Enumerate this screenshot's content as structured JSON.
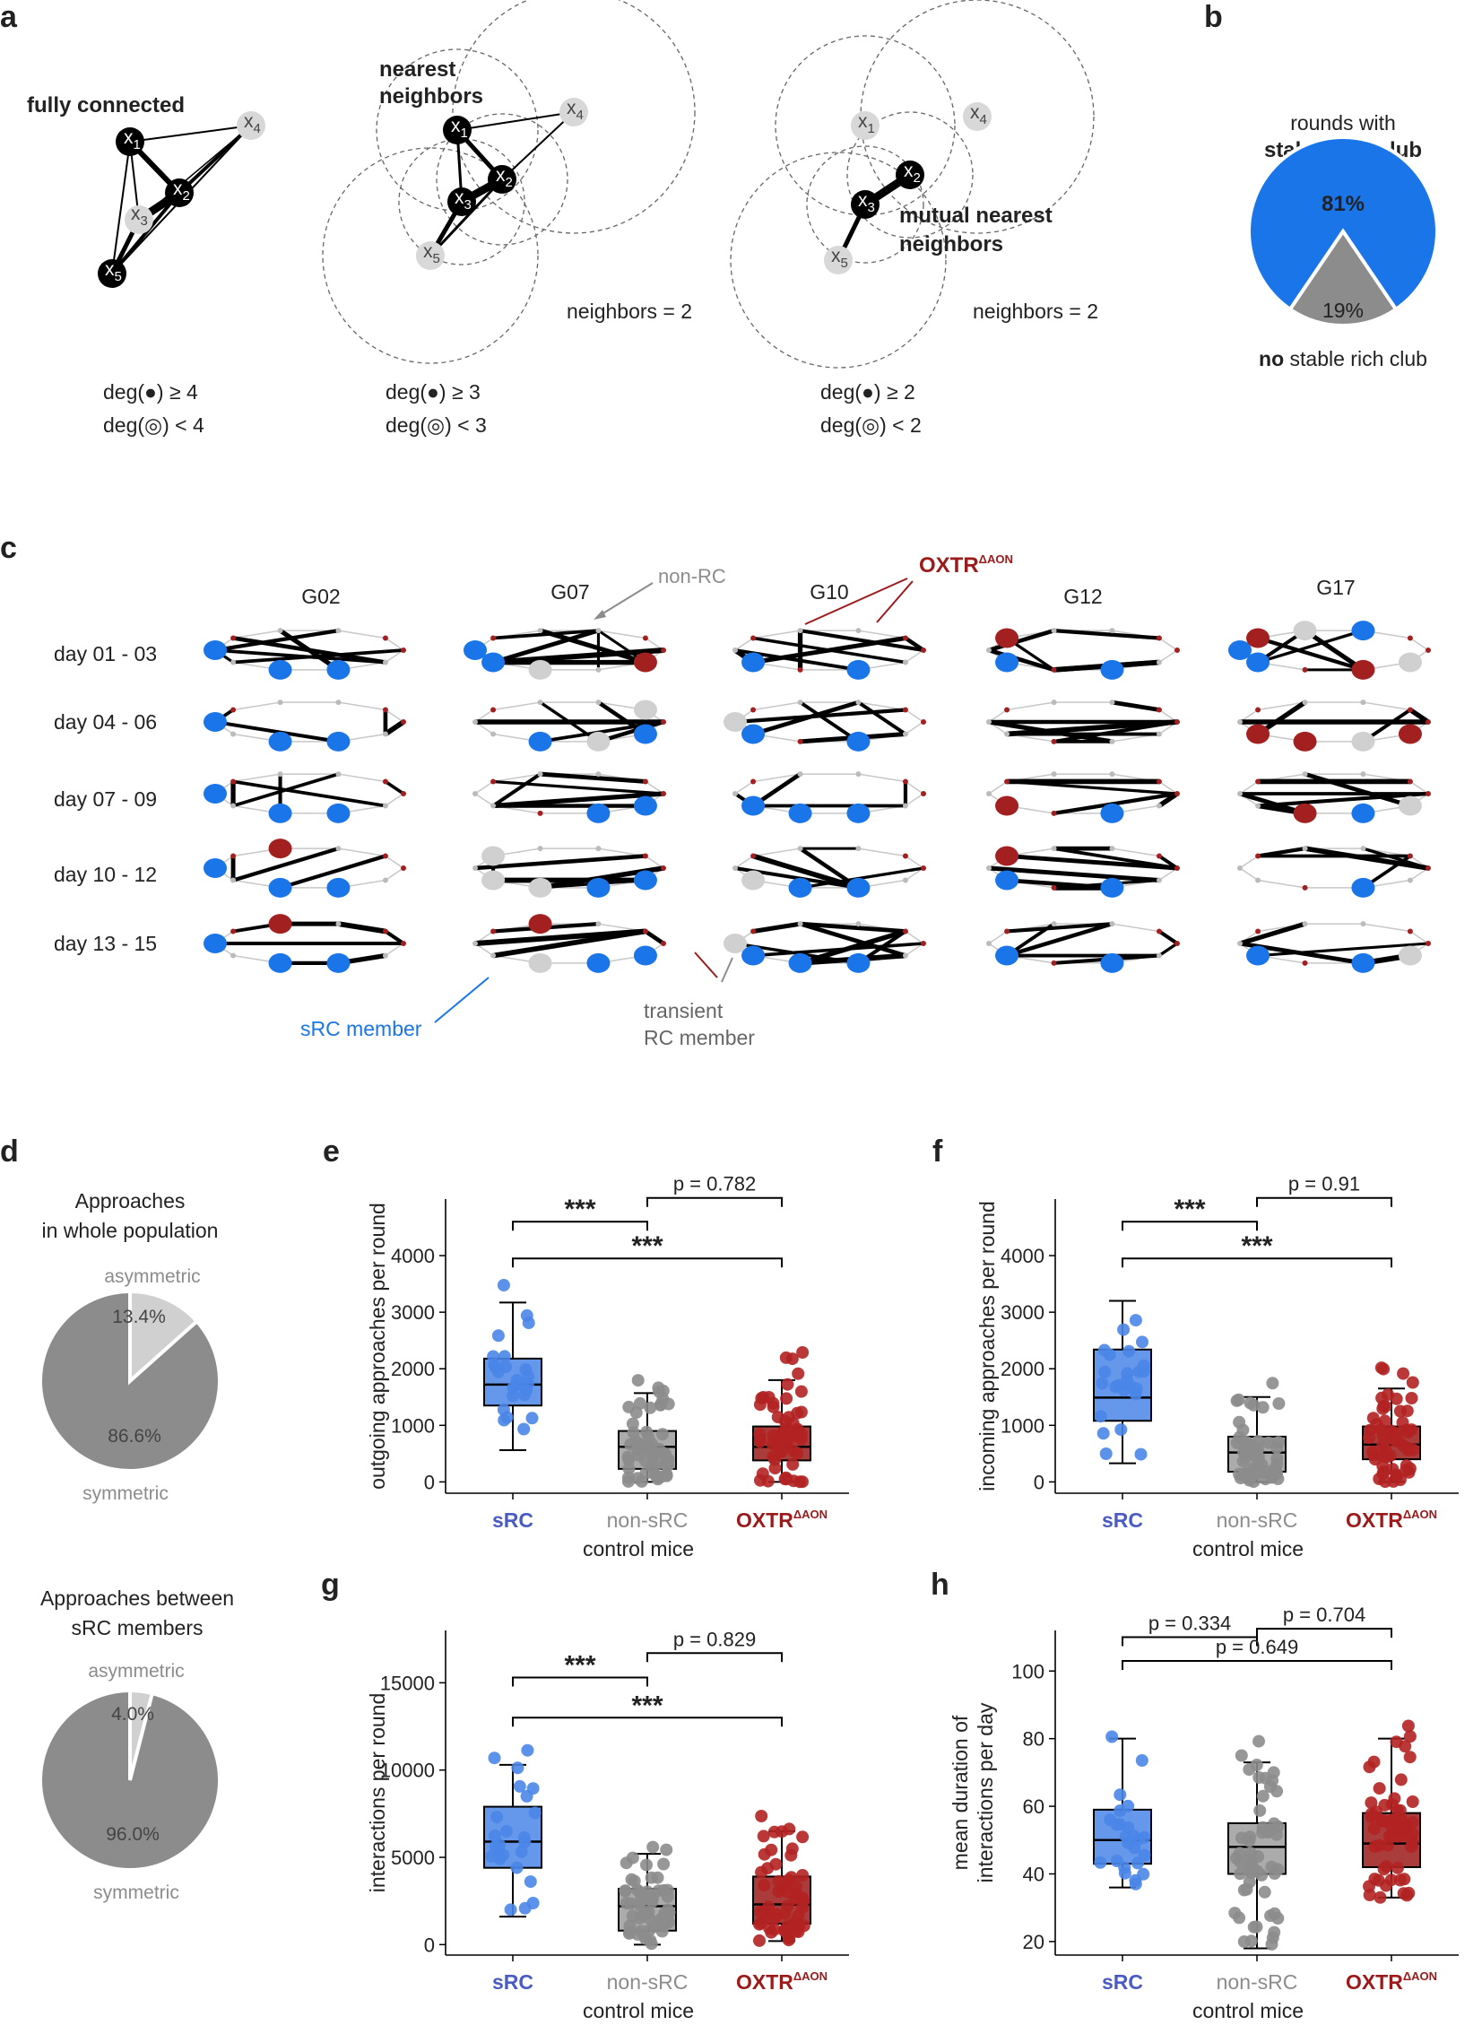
{
  "colors": {
    "src": "#1a75e8",
    "src_light": "#4a86e8",
    "grey": "#8c8c8c",
    "light_grey": "#d0d0d0",
    "oxtr": "#9b1a1a",
    "oxtr_node": "#a32020",
    "black": "#000000"
  },
  "panel_labels": {
    "a": "a",
    "b": "b",
    "c": "c",
    "d": "d",
    "e": "e",
    "f": "f",
    "g": "g",
    "h": "h"
  },
  "panel_a": {
    "graphs": [
      {
        "title": "fully connected",
        "deg_black": "deg(●) ≥ 4",
        "deg_grey": "deg(◎) < 4",
        "neighbors": "",
        "nodes": [
          "x1",
          "x2",
          "x3",
          "x4",
          "x5"
        ]
      },
      {
        "title_line1": "nearest",
        "title_line2": "neighbors",
        "deg_black": "deg(●) ≥ 3",
        "deg_grey": "deg(◎) < 3",
        "neighbors": "neighbors = 2",
        "nodes": [
          "x1",
          "x2",
          "x3",
          "x4",
          "x5"
        ]
      },
      {
        "title_line1": "mutual nearest",
        "title_line2": "neighbors",
        "deg_black": "deg(●) ≥ 2",
        "deg_grey": "deg(◎) < 2",
        "neighbors": "neighbors = 2",
        "nodes": [
          "x1",
          "x2",
          "x3",
          "x4",
          "x5"
        ]
      }
    ]
  },
  "panel_b": {
    "title_line1": "rounds with",
    "title_line2": "stable rich club",
    "bottom_bold": "no",
    "bottom_rest": " stable rich club",
    "slices": [
      {
        "label": "81%",
        "value": 81
      },
      {
        "label": "19%",
        "value": 19
      }
    ]
  },
  "panel_c": {
    "groups": [
      "G02",
      "G07",
      "G10",
      "G12",
      "G17"
    ],
    "rows": [
      "day 01 - 03",
      "day 04 - 06",
      "day 07 - 09",
      "day 10 - 12",
      "day 13 - 15"
    ],
    "annotations": {
      "non_rc": "non-RC",
      "oxtr": "OXTR",
      "oxtr_sup": "ΔAON",
      "src_member": "sRC member",
      "transient_1": "transient",
      "transient_2": "RC member"
    }
  },
  "panel_d": {
    "pies": [
      {
        "title_line1": "Approaches",
        "title_line2": "in whole population",
        "asym_label": "asymmetric",
        "sym_label": "symmetric",
        "asym_pct": "13.4%",
        "sym_pct": "86.6%",
        "asym_value": 13.4
      },
      {
        "title_line1": "Approaches between",
        "title_line2": "sRC members",
        "asym_label": "asymmetric",
        "sym_label": "symmetric",
        "asym_pct": "4.0%",
        "sym_pct": "96.0%",
        "asym_value": 4.0
      }
    ]
  },
  "chart_data": [
    {
      "type": "box",
      "panel": "e",
      "ylabel": "outgoing approaches per round",
      "xlabel": "control mice",
      "categories": [
        "sRC",
        "non-sRC",
        "OXTR"
      ],
      "cat_sup": [
        "",
        "",
        "ΔAON"
      ],
      "ylim": [
        -200,
        5000
      ],
      "yticks": [
        0,
        1000,
        2000,
        3000,
        4000
      ],
      "boxes": [
        {
          "q1": 1350,
          "median": 1720,
          "q3": 2180,
          "lo": 560,
          "hi": 3170
        },
        {
          "q1": 230,
          "median": 620,
          "q3": 900,
          "lo": 0,
          "hi": 1570
        },
        {
          "q1": 380,
          "median": 620,
          "q3": 980,
          "lo": 0,
          "hi": 1800
        }
      ],
      "brackets": [
        {
          "from": 0,
          "to": 1,
          "y": 4600,
          "label": "***"
        },
        {
          "from": 1,
          "to": 2,
          "y": 5020,
          "label": "p = 0.782"
        },
        {
          "from": 0,
          "to": 2,
          "y": 3950,
          "label": "***"
        }
      ]
    },
    {
      "type": "box",
      "panel": "f",
      "ylabel": "incoming approaches per round",
      "xlabel": "control mice",
      "categories": [
        "sRC",
        "non-sRC",
        "OXTR"
      ],
      "cat_sup": [
        "",
        "",
        "ΔAON"
      ],
      "ylim": [
        -200,
        5000
      ],
      "yticks": [
        0,
        1000,
        2000,
        3000,
        4000
      ],
      "boxes": [
        {
          "q1": 1080,
          "median": 1490,
          "q3": 2340,
          "lo": 330,
          "hi": 3200
        },
        {
          "q1": 180,
          "median": 520,
          "q3": 800,
          "lo": 0,
          "hi": 1500
        },
        {
          "q1": 400,
          "median": 660,
          "q3": 980,
          "lo": 0,
          "hi": 1650
        }
      ],
      "brackets": [
        {
          "from": 0,
          "to": 1,
          "y": 4600,
          "label": "***"
        },
        {
          "from": 1,
          "to": 2,
          "y": 5020,
          "label": "p = 0.91"
        },
        {
          "from": 0,
          "to": 2,
          "y": 3950,
          "label": "***"
        }
      ]
    },
    {
      "type": "box",
      "panel": "g",
      "ylabel": "interactions per round",
      "xlabel": "control mice",
      "categories": [
        "sRC",
        "non-sRC",
        "OXTR"
      ],
      "cat_sup": [
        "",
        "",
        "ΔAON"
      ],
      "ylim": [
        -600,
        18000
      ],
      "yticks": [
        0,
        5000,
        10000,
        15000
      ],
      "boxes": [
        {
          "q1": 4400,
          "median": 5900,
          "q3": 7900,
          "lo": 1600,
          "hi": 10300
        },
        {
          "q1": 800,
          "median": 2200,
          "q3": 3200,
          "lo": 0,
          "hi": 5200
        },
        {
          "q1": 1200,
          "median": 2300,
          "q3": 3900,
          "lo": 200,
          "hi": 6500
        }
      ],
      "brackets": [
        {
          "from": 0,
          "to": 1,
          "y": 15300,
          "label": "***"
        },
        {
          "from": 1,
          "to": 2,
          "y": 16700,
          "label": "p = 0.829"
        },
        {
          "from": 0,
          "to": 2,
          "y": 13000,
          "label": "***"
        }
      ]
    },
    {
      "type": "box",
      "panel": "h",
      "ylabel_line1": "mean duration of",
      "ylabel_line2": "interactions per day",
      "xlabel": "control mice",
      "categories": [
        "sRC",
        "non-sRC",
        "OXTR"
      ],
      "cat_sup": [
        "",
        "",
        "ΔAON"
      ],
      "ylim": [
        16,
        112
      ],
      "yticks": [
        20,
        40,
        60,
        80,
        100
      ],
      "boxes": [
        {
          "q1": 43,
          "median": 50,
          "q3": 59,
          "lo": 36,
          "hi": 80
        },
        {
          "q1": 40,
          "median": 48,
          "q3": 55,
          "lo": 18,
          "hi": 73
        },
        {
          "q1": 42,
          "median": 49,
          "q3": 58,
          "lo": 33,
          "hi": 80
        }
      ],
      "brackets": [
        {
          "from": 0,
          "to": 1,
          "y": 110,
          "label": "p = 0.334"
        },
        {
          "from": 1,
          "to": 2,
          "y": 112.5,
          "label": "p = 0.704"
        },
        {
          "from": 0,
          "to": 2,
          "y": 103,
          "label": "p = 0.649"
        }
      ]
    }
  ]
}
